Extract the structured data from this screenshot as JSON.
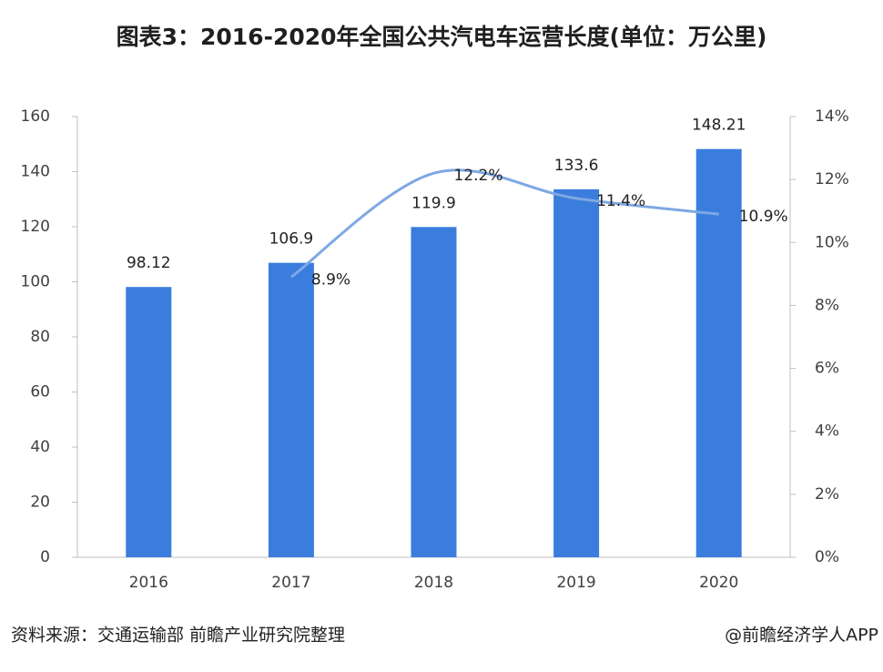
{
  "chart_data": {
    "type": "bar",
    "title": "图表3：2016-2020年全国公共汽电车运营长度(单位：万公里)",
    "categories": [
      "2016",
      "2017",
      "2018",
      "2019",
      "2020"
    ],
    "series": [
      {
        "type": "bar",
        "color": "#3b7ddd",
        "values": [
          98.12,
          106.9,
          119.9,
          133.6,
          148.21
        ]
      },
      {
        "type": "line",
        "axis": "y2",
        "color": "#7ea8e4",
        "values": [
          null,
          8.9,
          12.2,
          11.4,
          10.9
        ],
        "value_labels": [
          null,
          "8.9%",
          "12.2%",
          "11.4%",
          "10.9%"
        ]
      }
    ],
    "ylim": [
      0,
      160
    ],
    "yticks": [
      0,
      20,
      40,
      60,
      80,
      100,
      120,
      140,
      160
    ],
    "y2lim": [
      0,
      14
    ],
    "y2ticks": [
      {
        "value": 0,
        "label": "0%"
      },
      {
        "value": 2,
        "label": "2%"
      },
      {
        "value": 4,
        "label": "4%"
      },
      {
        "value": 6,
        "label": "6%"
      },
      {
        "value": 8,
        "label": "8%"
      },
      {
        "value": 10,
        "label": "10%"
      },
      {
        "value": 12,
        "label": "12%"
      },
      {
        "value": 14,
        "label": "14%"
      }
    ],
    "source": "资料来源：交通运输部 前瞻产业研究院整理",
    "credit": "@前瞻经济学人APP"
  }
}
